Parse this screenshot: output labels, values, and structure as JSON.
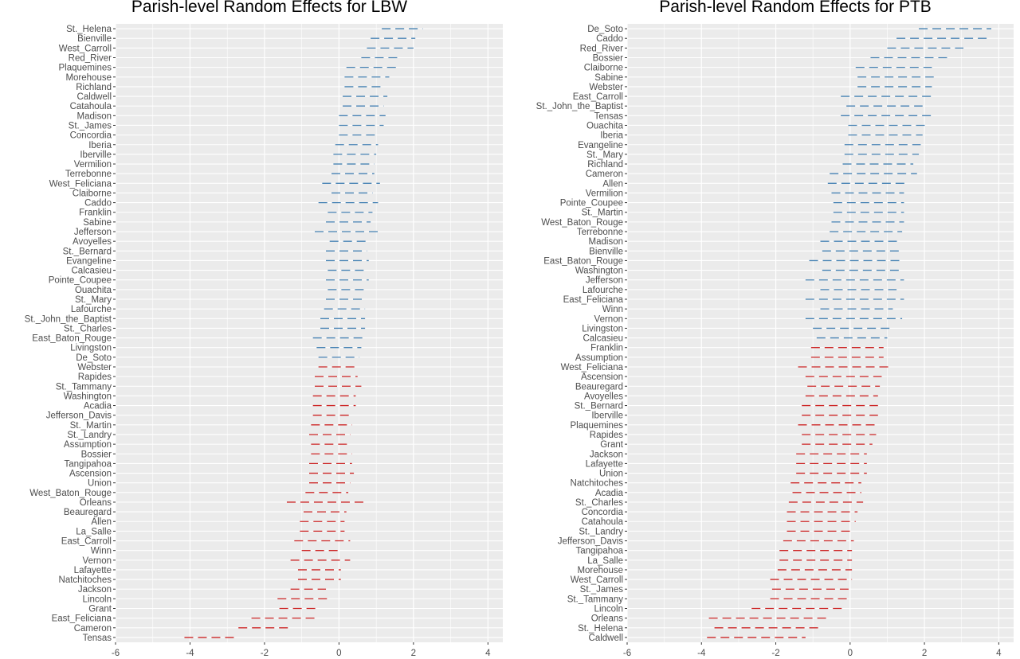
{
  "colors": {
    "panel_bg": "#ebebeb",
    "grid": "#ffffff",
    "positive": "#4682b4",
    "negative": "#cd2626",
    "text": "#4d4d4d"
  },
  "chart_data": [
    {
      "type": "interval",
      "title": "Parish-level Random Effects for LBW",
      "xlabel": "",
      "ylabel": "",
      "xlim": [
        -6.0,
        4.4
      ],
      "xticks": [
        -6,
        -4,
        -2,
        0,
        2,
        4
      ],
      "grid": true,
      "legend": "none",
      "categories": [
        "St._Helena",
        "Bienville",
        "West_Carroll",
        "Red_River",
        "Plaquemines",
        "Morehouse",
        "Richland",
        "Caldwell",
        "Catahoula",
        "Madison",
        "St._James",
        "Concordia",
        "Iberia",
        "Iberville",
        "Vermilion",
        "Terrebonne",
        "West_Feliciana",
        "Claiborne",
        "Caddo",
        "Franklin",
        "Sabine",
        "Jefferson",
        "Avoyelles",
        "St._Bernard",
        "Evangeline",
        "Calcasieu",
        "Pointe_Coupee",
        "Ouachita",
        "St._Mary",
        "Lafourche",
        "St._John_the_Baptist",
        "St._Charles",
        "East_Baton_Rouge",
        "Livingston",
        "De_Soto",
        "Webster",
        "Rapides",
        "St._Tammany",
        "Washington",
        "Acadia",
        "Jefferson_Davis",
        "St._Martin",
        "St._Landry",
        "Assumption",
        "Bossier",
        "Tangipahoa",
        "Ascension",
        "Union",
        "West_Baton_Rouge",
        "Orleans",
        "Beauregard",
        "Allen",
        "La_Salle",
        "East_Carroll",
        "Winn",
        "Vernon",
        "Lafayette",
        "Natchitoches",
        "Jackson",
        "Lincoln",
        "Grant",
        "East_Feliciana",
        "Cameron",
        "Tensas"
      ],
      "lower": [
        1.15,
        0.85,
        0.75,
        0.6,
        0.2,
        0.15,
        0.15,
        0.1,
        0.1,
        0.0,
        0.0,
        0.0,
        -0.1,
        -0.15,
        -0.15,
        -0.2,
        -0.45,
        -0.2,
        -0.55,
        -0.3,
        -0.35,
        -0.65,
        -0.25,
        -0.35,
        -0.35,
        -0.3,
        -0.35,
        -0.3,
        -0.35,
        -0.4,
        -0.5,
        -0.5,
        -0.7,
        -0.6,
        -0.55,
        -0.55,
        -0.65,
        -0.65,
        -0.7,
        -0.7,
        -0.7,
        -0.75,
        -0.8,
        -0.75,
        -0.75,
        -0.8,
        -0.8,
        -0.8,
        -0.9,
        -1.4,
        -0.95,
        -1.05,
        -1.05,
        -1.2,
        -1.0,
        -1.3,
        -1.1,
        -1.1,
        -1.3,
        -1.65,
        -1.6,
        -2.35,
        -2.7,
        -4.15
      ],
      "upper": [
        2.25,
        2.05,
        2.0,
        1.65,
        1.6,
        1.35,
        1.2,
        1.3,
        1.2,
        1.25,
        1.2,
        1.05,
        1.05,
        1.0,
        0.95,
        0.95,
        1.1,
        0.9,
        1.05,
        0.9,
        0.85,
        1.15,
        0.75,
        0.75,
        0.8,
        0.75,
        0.8,
        0.75,
        0.7,
        0.7,
        0.7,
        0.7,
        0.75,
        0.6,
        0.55,
        0.5,
        0.5,
        0.6,
        0.45,
        0.45,
        0.35,
        0.35,
        0.3,
        0.3,
        0.35,
        0.35,
        0.4,
        0.3,
        0.25,
        0.75,
        0.2,
        0.15,
        0.15,
        0.3,
        0.0,
        0.3,
        0.05,
        0.05,
        -0.35,
        -0.3,
        -0.55,
        -0.6,
        -1.3,
        -2.75
      ]
    },
    {
      "type": "interval",
      "title": "Parish-level Random Effects for PTB",
      "xlabel": "",
      "ylabel": "",
      "xlim": [
        -6.0,
        4.4
      ],
      "xticks": [
        -6,
        -4,
        -2,
        0,
        2,
        4
      ],
      "grid": true,
      "legend": "none",
      "categories": [
        "De_Soto",
        "Caddo",
        "Red_River",
        "Bossier",
        "Claiborne",
        "Sabine",
        "Webster",
        "East_Carroll",
        "St._John_the_Baptist",
        "Tensas",
        "Ouachita",
        "Iberia",
        "Evangeline",
        "St._Mary",
        "Richland",
        "Cameron",
        "Allen",
        "Vermilion",
        "Pointe_Coupee",
        "St._Martin",
        "West_Baton_Rouge",
        "Terrebonne",
        "Madison",
        "Bienville",
        "East_Baton_Rouge",
        "Washington",
        "Jefferson",
        "Lafourche",
        "East_Feliciana",
        "Winn",
        "Vernon",
        "Livingston",
        "Calcasieu",
        "Franklin",
        "Assumption",
        "West_Feliciana",
        "Ascension",
        "Beauregard",
        "Avoyelles",
        "St._Bernard",
        "Iberville",
        "Plaquemines",
        "Rapides",
        "Grant",
        "Jackson",
        "Lafayette",
        "Union",
        "Natchitoches",
        "Acadia",
        "St._Charles",
        "Concordia",
        "Catahoula",
        "St._Landry",
        "Jefferson_Davis",
        "Tangipahoa",
        "La_Salle",
        "Morehouse",
        "West_Carroll",
        "St._James",
        "St._Tammany",
        "Lincoln",
        "Orleans",
        "St._Helena",
        "Caldwell"
      ],
      "lower": [
        1.85,
        1.25,
        1.0,
        0.55,
        0.15,
        0.2,
        0.2,
        -0.25,
        -0.1,
        -0.25,
        -0.05,
        -0.05,
        -0.15,
        -0.15,
        -0.2,
        -0.55,
        -0.6,
        -0.5,
        -0.45,
        -0.45,
        -0.5,
        -0.55,
        -0.8,
        -0.75,
        -1.1,
        -0.75,
        -1.2,
        -0.8,
        -1.2,
        -0.8,
        -1.2,
        -1.0,
        -0.9,
        -1.05,
        -1.05,
        -1.4,
        -1.2,
        -1.15,
        -1.2,
        -1.3,
        -1.3,
        -1.4,
        -1.3,
        -1.3,
        -1.45,
        -1.45,
        -1.45,
        -1.6,
        -1.55,
        -1.65,
        -1.7,
        -1.7,
        -1.7,
        -1.8,
        -1.9,
        -1.9,
        -1.95,
        -2.15,
        -2.1,
        -2.15,
        -2.65,
        -3.8,
        -3.65,
        -3.85
      ],
      "upper": [
        3.8,
        3.75,
        3.05,
        2.65,
        2.2,
        2.25,
        2.2,
        2.25,
        1.95,
        2.2,
        2.05,
        1.95,
        1.9,
        1.85,
        1.7,
        1.8,
        1.55,
        1.45,
        1.45,
        1.45,
        1.45,
        1.4,
        1.3,
        1.35,
        1.45,
        1.35,
        1.45,
        1.25,
        1.45,
        1.15,
        1.4,
        1.1,
        1.0,
        0.9,
        0.9,
        1.1,
        0.85,
        0.8,
        0.75,
        0.75,
        0.75,
        0.7,
        0.7,
        0.6,
        0.45,
        0.45,
        0.45,
        0.3,
        0.3,
        0.35,
        0.2,
        0.15,
        0.1,
        0.1,
        0.05,
        0.05,
        0.05,
        0.05,
        0.0,
        0.0,
        -0.2,
        -0.6,
        -0.8,
        -1.2
      ]
    }
  ]
}
